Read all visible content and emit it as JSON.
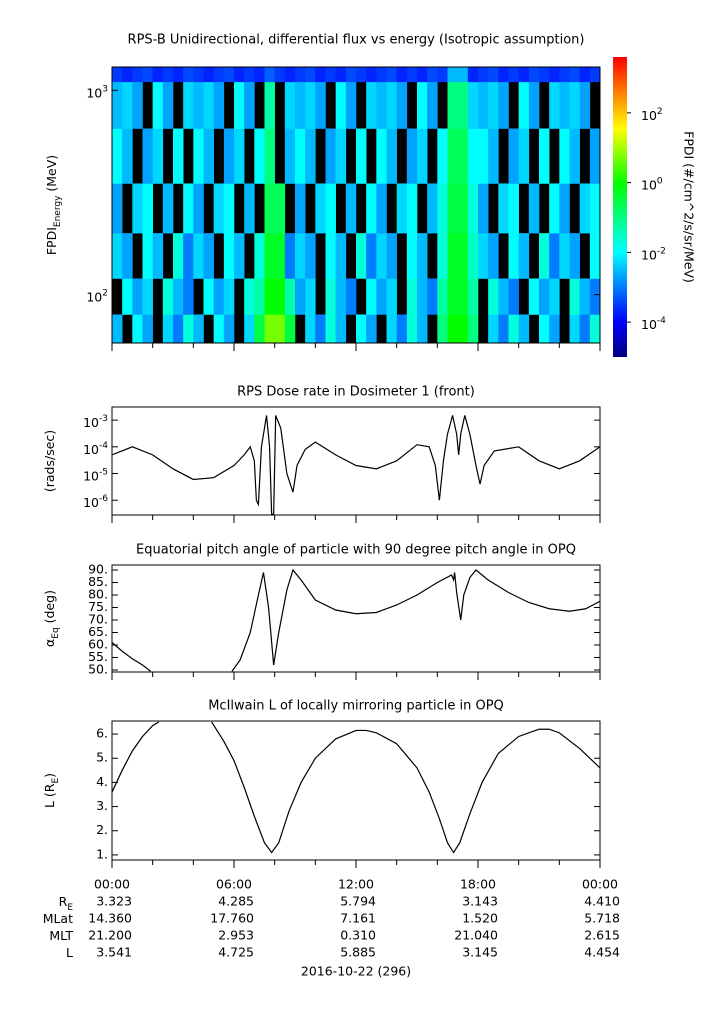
{
  "chart_data": [
    {
      "type": "heatmap",
      "title": "RPS-B  Unidirectional, differential flux vs energy (Isotropic assumption)",
      "ylabel": {
        "main": "FPDI",
        "sub": "Energy",
        "rest": " (MeV)"
      },
      "log_y": true,
      "ylim": [
        58,
        1300
      ],
      "yticks": [
        {
          "value": 100,
          "base": "10",
          "exp": "2"
        },
        {
          "value": 1000,
          "base": "10",
          "exp": "3"
        }
      ],
      "x_bins": [
        0,
        0.5,
        1,
        1.5,
        2,
        2.5,
        3,
        3.5,
        4,
        4.5,
        5,
        5.5,
        6,
        6.5,
        7,
        7.5,
        8,
        8.5,
        9,
        9.5,
        10,
        10.5,
        11,
        11.5,
        12,
        12.5,
        13,
        13.5,
        14,
        14.5,
        15,
        15.5,
        16,
        16.5,
        17,
        17.5,
        18,
        18.5,
        19,
        19.5,
        20,
        20.5,
        21,
        21.5,
        22,
        22.5,
        23,
        23.5,
        24
      ],
      "y_bins": [
        58,
        80,
        120,
        200,
        350,
        650,
        1100,
        1300
      ],
      "values": [
        [
          0.003,
          null,
          0.01,
          0.002,
          null,
          0.005,
          0.001,
          0.02,
          0.003,
          null,
          0.01,
          0.002,
          null,
          0.005,
          0.3,
          5,
          5,
          0.3,
          null,
          0.005,
          0.001,
          0.02,
          0.003,
          null,
          0.01,
          0.002,
          null,
          0.005,
          0.001,
          0.02,
          0.003,
          null,
          0.1,
          1,
          1,
          0.1,
          null,
          0.005,
          0.001,
          0.02,
          0.003,
          null,
          0.01,
          0.002,
          null,
          0.005,
          0.001,
          0.02
        ],
        [
          null,
          0.01,
          0.002,
          0.005,
          null,
          0.02,
          0.003,
          0.001,
          null,
          0.01,
          0.002,
          0.005,
          null,
          0.02,
          0.05,
          1,
          1,
          0.05,
          0.002,
          0.005,
          null,
          0.02,
          0.003,
          0.001,
          null,
          0.01,
          0.002,
          0.005,
          null,
          0.02,
          0.003,
          0.001,
          0.05,
          0.5,
          0.5,
          0.05,
          null,
          0.02,
          0.003,
          0.001,
          null,
          0.01,
          0.002,
          0.005,
          null,
          0.02,
          0.003,
          0.001
        ],
        [
          0.005,
          0.002,
          null,
          0.01,
          0.003,
          null,
          0.02,
          0.001,
          0.005,
          0.002,
          null,
          0.01,
          0.003,
          null,
          0.02,
          0.5,
          0.5,
          0.001,
          0.005,
          0.002,
          null,
          0.01,
          0.003,
          null,
          0.02,
          0.001,
          0.005,
          0.002,
          null,
          0.01,
          0.003,
          null,
          0.02,
          0.5,
          0.5,
          0.03,
          0.005,
          0.002,
          null,
          0.01,
          0.003,
          null,
          0.02,
          0.001,
          0.005,
          0.002,
          null,
          0.01
        ],
        [
          0.002,
          null,
          0.005,
          0.01,
          null,
          0.003,
          null,
          0.01,
          0.002,
          null,
          0.005,
          0.01,
          null,
          0.003,
          null,
          0.2,
          0.2,
          null,
          0.002,
          null,
          0.005,
          0.01,
          null,
          0.003,
          null,
          0.01,
          0.002,
          null,
          0.005,
          0.01,
          null,
          0.003,
          0.02,
          0.3,
          0.3,
          0.02,
          0.002,
          null,
          0.005,
          0.01,
          null,
          0.003,
          null,
          0.01,
          0.002,
          null,
          0.005,
          0.01
        ],
        [
          0.01,
          0.003,
          null,
          0.002,
          0.005,
          null,
          0.01,
          null,
          0.01,
          0.003,
          null,
          0.002,
          0.005,
          null,
          0.01,
          0.1,
          null,
          0.003,
          0.01,
          0.003,
          null,
          0.002,
          0.005,
          null,
          0.01,
          null,
          0.01,
          0.003,
          null,
          0.002,
          0.005,
          null,
          0.01,
          0.2,
          0.2,
          0.01,
          0.01,
          0.003,
          null,
          0.002,
          0.005,
          null,
          0.01,
          null,
          0.01,
          0.003,
          null,
          0.002
        ],
        [
          0.003,
          0.005,
          0.002,
          null,
          0.01,
          0.002,
          null,
          0.005,
          0.003,
          0.005,
          0.002,
          null,
          0.01,
          0.002,
          null,
          0.05,
          null,
          0.005,
          0.003,
          0.005,
          0.002,
          null,
          0.01,
          0.002,
          null,
          0.005,
          0.003,
          0.005,
          0.002,
          null,
          0.01,
          0.002,
          null,
          0.1,
          0.1,
          0.005,
          0.003,
          0.005,
          0.002,
          null,
          0.01,
          0.002,
          null,
          0.005,
          0.003,
          0.005,
          0.002,
          null
        ],
        [
          0.0003,
          0.0002,
          0.0003,
          0.0004,
          0.0002,
          0.0003,
          0.0002,
          0.0004,
          0.0003,
          0.0002,
          0.0003,
          0.0004,
          0.0002,
          0.0003,
          0.0002,
          0.0006,
          0.0003,
          0.0002,
          0.0003,
          0.0004,
          0.0002,
          0.0003,
          0.0002,
          0.0004,
          0.0003,
          0.0002,
          0.0003,
          0.0004,
          0.0002,
          0.0003,
          0.0002,
          0.0004,
          0.0003,
          0.003,
          0.003,
          0.0002,
          0.0003,
          0.0004,
          0.0002,
          0.0003,
          0.0002,
          0.0004,
          0.0003,
          0.0002,
          0.0003,
          0.0004,
          0.0002,
          0.0003
        ]
      ],
      "colorbar": {
        "label": "FPDI (#/cm^2/s/sr/MeV)",
        "log": true,
        "lim": [
          1e-05,
          4000
        ],
        "ticks": [
          {
            "value": 100,
            "base": "10",
            "exp": "2"
          },
          {
            "value": 1,
            "base": "10",
            "exp": "0"
          },
          {
            "value": 0.01,
            "base": "10",
            "exp": "-2"
          },
          {
            "value": 0.0001,
            "base": "10",
            "exp": "-4"
          }
        ]
      }
    },
    {
      "type": "line",
      "title": "RPS  Dose rate in Dosimeter 1 (front)",
      "ylabel": {
        "main": "(rads/sec)"
      },
      "log_y": true,
      "ylim": [
        2.8e-07,
        0.0031
      ],
      "color": "#000000",
      "yticks": [
        {
          "value": 0.001,
          "base": "10",
          "exp": "-3"
        },
        {
          "value": 0.0001,
          "base": "10",
          "exp": "-4"
        },
        {
          "value": 1e-05,
          "base": "10",
          "exp": "-5"
        },
        {
          "value": 1e-06,
          "base": "10",
          "exp": "-6"
        }
      ],
      "x": [
        0,
        1,
        2,
        3,
        4,
        5,
        6,
        6.5,
        6.8,
        7.0,
        7.1,
        7.2,
        7.35,
        7.6,
        7.75,
        7.85,
        7.95,
        8.05,
        8.3,
        8.6,
        8.9,
        9.1,
        9.5,
        10,
        11,
        12,
        13,
        14,
        15,
        15.6,
        15.9,
        16.1,
        16.3,
        16.5,
        16.75,
        16.95,
        17.05,
        17.15,
        17.35,
        17.6,
        17.9,
        18.1,
        18.3,
        18.8,
        20,
        21,
        22,
        23,
        24
      ],
      "values": [
        5e-05,
        0.0001,
        5e-05,
        1.5e-05,
        6e-06,
        7e-06,
        2e-05,
        5e-05,
        0.0001,
        3e-05,
        1e-06,
        7e-07,
        0.0001,
        0.0015,
        0.0001,
        3e-07,
        3e-07,
        0.0015,
        0.0005,
        1e-05,
        2e-06,
        2e-05,
        8e-05,
        0.00015,
        5e-05,
        2e-05,
        1.5e-05,
        3e-05,
        0.00012,
        0.0001,
        2e-05,
        1e-06,
        3e-05,
        0.0003,
        0.0015,
        0.0003,
        5e-05,
        0.0003,
        0.0015,
        0.0003,
        2e-05,
        4e-06,
        2e-05,
        7e-05,
        0.0001,
        3e-05,
        1.5e-05,
        3e-05,
        0.0001
      ]
    },
    {
      "type": "line",
      "title": "Equatorial pitch angle of particle with 90 degree pitch angle in OPQ",
      "ylabel": {
        "main": "α",
        "sub": "Eq",
        "rest": " (deg)"
      },
      "ylim": [
        49.2,
        92
      ],
      "color": "#000000",
      "yticks": [
        {
          "value": 90,
          "label": "90."
        },
        {
          "value": 85,
          "label": "85."
        },
        {
          "value": 80,
          "label": "80."
        },
        {
          "value": 75,
          "label": "75."
        },
        {
          "value": 70,
          "label": "70."
        },
        {
          "value": 65,
          "label": "65."
        },
        {
          "value": 60,
          "label": "60."
        },
        {
          "value": 55,
          "label": "55."
        },
        {
          "value": 50,
          "label": "50."
        }
      ],
      "x": [
        0,
        0.5,
        1,
        1.5,
        1.9,
        4,
        5.9,
        6.3,
        6.8,
        7.2,
        7.45,
        7.7,
        7.95,
        8.2,
        8.6,
        8.9,
        9.3,
        10,
        11,
        12,
        13,
        14,
        15,
        16,
        16.7,
        16.8,
        16.85,
        16.95,
        17.15,
        17.3,
        17.6,
        17.9,
        18.5,
        19.5,
        20.5,
        21.5,
        22.5,
        23.3,
        24
      ],
      "values": [
        61,
        57.5,
        54.5,
        52,
        49.5,
        null,
        49.5,
        54,
        65,
        80,
        89,
        75,
        52,
        65,
        82,
        90,
        86,
        78,
        74,
        72.5,
        73,
        76,
        80,
        85,
        88,
        86,
        89,
        81,
        70,
        80,
        87,
        90,
        86,
        81,
        77,
        74.5,
        73.5,
        74.5,
        77.5
      ]
    },
    {
      "type": "line",
      "title": "McIlwain L of locally mirroring particle in OPQ",
      "ylabel": {
        "main": "L (R",
        "sub": "E",
        "rest": ")"
      },
      "ylim": [
        0.79,
        6.54
      ],
      "color": "#000000",
      "yticks": [
        {
          "value": 6,
          "label": "6."
        },
        {
          "value": 5,
          "label": "5."
        },
        {
          "value": 4,
          "label": "4."
        },
        {
          "value": 3,
          "label": "3."
        },
        {
          "value": 2,
          "label": "2."
        },
        {
          "value": 1,
          "label": "1."
        }
      ],
      "x": [
        0,
        0.5,
        1,
        1.5,
        2,
        2.3,
        3.5,
        4.9,
        5.5,
        6,
        6.5,
        7,
        7.5,
        7.85,
        8.2,
        8.7,
        9.3,
        10,
        11,
        12,
        12.5,
        13,
        14,
        15,
        15.6,
        16.1,
        16.5,
        16.8,
        17.1,
        17.6,
        18.2,
        19,
        20,
        21,
        21.5,
        22,
        23,
        24
      ],
      "values": [
        3.6,
        4.5,
        5.3,
        5.9,
        6.35,
        6.5,
        null,
        6.5,
        5.7,
        4.9,
        3.8,
        2.6,
        1.5,
        1.1,
        1.5,
        2.8,
        4.0,
        5.0,
        5.8,
        6.15,
        6.15,
        6.05,
        5.6,
        4.6,
        3.6,
        2.5,
        1.5,
        1.1,
        1.5,
        2.7,
        4.0,
        5.2,
        5.9,
        6.2,
        6.2,
        6.05,
        5.4,
        4.6
      ]
    }
  ],
  "x_axis": {
    "xlim": [
      0,
      24
    ],
    "xticks": [
      {
        "value": 0,
        "label": "00:00"
      },
      {
        "value": 6,
        "label": "06:00"
      },
      {
        "value": 12,
        "label": "12:00"
      },
      {
        "value": 18,
        "label": "18:00"
      },
      {
        "value": 24,
        "label": "00:00"
      }
    ],
    "minor_ticks": [
      2,
      4,
      8,
      10,
      14,
      16,
      20,
      22
    ],
    "xlabel": "2016-10-22 (296)"
  },
  "ephemeris": [
    {
      "label": {
        "main": "R",
        "sub": "E"
      },
      "values": [
        "3.323",
        "4.285",
        "5.794",
        "3.143",
        "4.410"
      ]
    },
    {
      "label": {
        "main": "MLat"
      },
      "values": [
        "14.360",
        "17.760",
        "7.161",
        "1.520",
        "5.718"
      ]
    },
    {
      "label": {
        "main": "MLT"
      },
      "values": [
        "21.200",
        "2.953",
        "0.310",
        "21.040",
        "2.615"
      ]
    },
    {
      "label": {
        "main": "L"
      },
      "values": [
        "3.541",
        "4.725",
        "5.885",
        "3.145",
        "4.454"
      ]
    }
  ]
}
